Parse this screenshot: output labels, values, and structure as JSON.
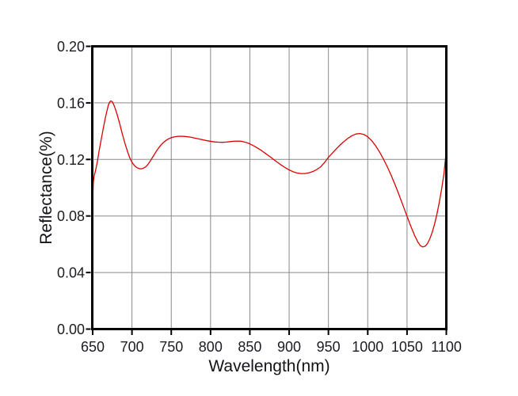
{
  "chart_data": {
    "type": "line",
    "title": "",
    "xlabel": "Wavelength(nm)",
    "ylabel": "Reflectance(%)",
    "xlim": [
      650,
      1100
    ],
    "ylim": [
      0.0,
      0.2
    ],
    "x_ticks": [
      650,
      700,
      750,
      800,
      850,
      900,
      950,
      1000,
      1050,
      1100
    ],
    "y_ticks": [
      "0.00",
      "0.04",
      "0.08",
      "0.12",
      "0.16",
      "0.20"
    ],
    "grid": true,
    "legend": "none",
    "colors": {
      "line": "#dd0000",
      "grid": "#8a8a8a",
      "axis": "#000000",
      "text": "#1b1b22",
      "background": "#ffffff"
    },
    "series": [
      {
        "name": "reflectance",
        "color": "#dd0000",
        "points": [
          [
            650,
            0.09
          ],
          [
            650.3,
            0.096
          ],
          [
            650.8,
            0.104
          ],
          [
            652,
            0.1085
          ],
          [
            654,
            0.113
          ],
          [
            656,
            0.1185
          ],
          [
            658,
            0.1255
          ],
          [
            660,
            0.1315
          ],
          [
            662,
            0.1375
          ],
          [
            664,
            0.1435
          ],
          [
            666,
            0.149
          ],
          [
            668,
            0.154
          ],
          [
            670,
            0.1585
          ],
          [
            671.5,
            0.1605
          ],
          [
            673,
            0.1614
          ],
          [
            675,
            0.1608
          ],
          [
            677,
            0.1585
          ],
          [
            679,
            0.1555
          ],
          [
            681,
            0.152
          ],
          [
            683,
            0.148
          ],
          [
            685,
            0.144
          ],
          [
            687,
            0.1395
          ],
          [
            689,
            0.1355
          ],
          [
            691,
            0.1315
          ],
          [
            693,
            0.128
          ],
          [
            695,
            0.1245
          ],
          [
            697,
            0.1215
          ],
          [
            699,
            0.119
          ],
          [
            701,
            0.1172
          ],
          [
            703,
            0.1158
          ],
          [
            705,
            0.1147
          ],
          [
            707,
            0.114
          ],
          [
            709,
            0.1135
          ],
          [
            711,
            0.1133
          ],
          [
            713,
            0.1135
          ],
          [
            715,
            0.1139
          ],
          [
            717,
            0.1146
          ],
          [
            719,
            0.1156
          ],
          [
            721,
            0.117
          ],
          [
            723,
            0.1186
          ],
          [
            725,
            0.1204
          ],
          [
            727,
            0.1222
          ],
          [
            729,
            0.124
          ],
          [
            731,
            0.1258
          ],
          [
            734,
            0.1282
          ],
          [
            737,
            0.1303
          ],
          [
            740,
            0.132
          ],
          [
            743,
            0.1333
          ],
          [
            746,
            0.1344
          ],
          [
            750,
            0.1354
          ],
          [
            754,
            0.136
          ],
          [
            758,
            0.1363
          ],
          [
            762,
            0.1364
          ],
          [
            766,
            0.1363
          ],
          [
            770,
            0.1361
          ],
          [
            775,
            0.1357
          ],
          [
            780,
            0.1351
          ],
          [
            785,
            0.1345
          ],
          [
            790,
            0.1339
          ],
          [
            795,
            0.1333
          ],
          [
            800,
            0.1328
          ],
          [
            805,
            0.1324
          ],
          [
            810,
            0.1322
          ],
          [
            815,
            0.1321
          ],
          [
            820,
            0.1323
          ],
          [
            825,
            0.1326
          ],
          [
            830,
            0.1329
          ],
          [
            835,
            0.133
          ],
          [
            840,
            0.1328
          ],
          [
            845,
            0.1321
          ],
          [
            850,
            0.131
          ],
          [
            855,
            0.1296
          ],
          [
            860,
            0.128
          ],
          [
            865,
            0.1262
          ],
          [
            870,
            0.1242
          ],
          [
            875,
            0.1222
          ],
          [
            880,
            0.1201
          ],
          [
            885,
            0.118
          ],
          [
            890,
            0.116
          ],
          [
            895,
            0.1142
          ],
          [
            900,
            0.1126
          ],
          [
            905,
            0.1113
          ],
          [
            910,
            0.1104
          ],
          [
            915,
            0.11
          ],
          [
            920,
            0.11
          ],
          [
            925,
            0.1105
          ],
          [
            930,
            0.1114
          ],
          [
            935,
            0.1128
          ],
          [
            940,
            0.1147
          ],
          [
            945,
            0.1178
          ],
          [
            950,
            0.1215
          ],
          [
            955,
            0.1245
          ],
          [
            960,
            0.1275
          ],
          [
            965,
            0.1303
          ],
          [
            970,
            0.1328
          ],
          [
            975,
            0.135
          ],
          [
            980,
            0.1368
          ],
          [
            985,
            0.138
          ],
          [
            990,
            0.1383
          ],
          [
            995,
            0.1377
          ],
          [
            1000,
            0.136
          ],
          [
            1005,
            0.1333
          ],
          [
            1010,
            0.1297
          ],
          [
            1015,
            0.1253
          ],
          [
            1020,
            0.1203
          ],
          [
            1025,
            0.1147
          ],
          [
            1030,
            0.1085
          ],
          [
            1035,
            0.1018
          ],
          [
            1040,
            0.0947
          ],
          [
            1045,
            0.0873
          ],
          [
            1050,
            0.0798
          ],
          [
            1055,
            0.0725
          ],
          [
            1060,
            0.0658
          ],
          [
            1064,
            0.0614
          ],
          [
            1067,
            0.059
          ],
          [
            1070,
            0.0581
          ],
          [
            1073,
            0.0586
          ],
          [
            1076,
            0.0605
          ],
          [
            1079,
            0.0638
          ],
          [
            1082,
            0.0684
          ],
          [
            1085,
            0.0742
          ],
          [
            1088,
            0.0812
          ],
          [
            1091,
            0.0895
          ],
          [
            1094,
            0.099
          ],
          [
            1097,
            0.1098
          ],
          [
            1100,
            0.127
          ]
        ]
      }
    ]
  }
}
